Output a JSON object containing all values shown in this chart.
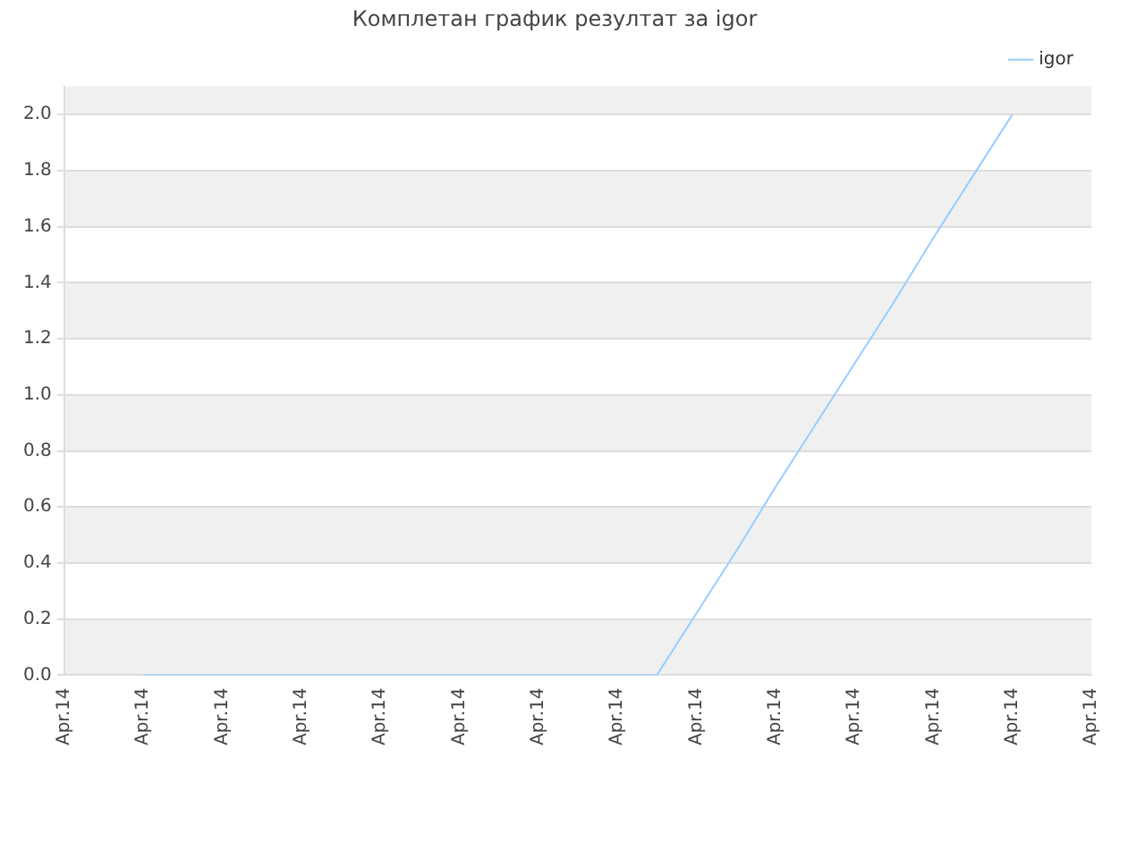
{
  "chart_data": {
    "type": "line",
    "title": "Комплетан график резултат за igor",
    "categories": [
      "Apr.14",
      null,
      "Apr.14",
      null,
      "Apr.14",
      null,
      "Apr.14",
      null,
      "Apr.14",
      null,
      "Apr.14",
      null,
      "Apr.14",
      null,
      "Apr.14",
      null,
      "Apr.14",
      null,
      "Apr.14",
      null,
      "Apr.14",
      null,
      "Apr.14",
      null,
      "Apr.14",
      null,
      "Apr.14"
    ],
    "series": [
      {
        "name": "igor",
        "color": "#99ccff",
        "values": [
          null,
          null,
          0,
          0,
          0,
          0,
          0,
          0,
          0,
          0,
          0,
          0,
          0,
          0,
          0,
          0,
          0.22,
          0.44,
          0.67,
          0.89,
          1.11,
          1.33,
          1.56,
          1.78,
          2,
          null,
          null
        ]
      }
    ],
    "ylim": [
      0,
      2.1
    ],
    "yticks": [
      {
        "value": 0,
        "label": "0.0"
      },
      {
        "value": 0.2,
        "label": "0.2"
      },
      {
        "value": 0.4,
        "label": "0.4"
      },
      {
        "value": 0.6,
        "label": "0.6"
      },
      {
        "value": 0.8,
        "label": "0.8"
      },
      {
        "value": 1,
        "label": "1.0"
      },
      {
        "value": 1.2,
        "label": "1.2"
      },
      {
        "value": 1.4,
        "label": "1.4"
      },
      {
        "value": 1.6,
        "label": "1.6"
      },
      {
        "value": 1.8,
        "label": "1.8"
      },
      {
        "value": 2,
        "label": "2.0"
      }
    ],
    "grid": "y",
    "legend": "top right",
    "marker": "none",
    "line_style": "solid"
  }
}
